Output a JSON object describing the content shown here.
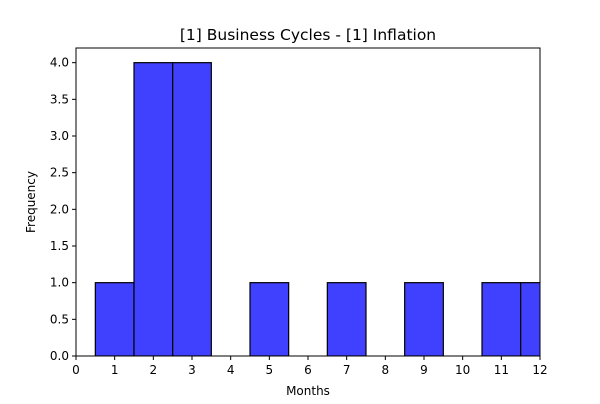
{
  "chart_data": {
    "type": "bar",
    "title": "[1] Business Cycles - [1] Inflation",
    "xlabel": "Months",
    "ylabel": "Frequency",
    "xlim": [
      0,
      12
    ],
    "ylim": [
      0,
      4.2
    ],
    "x_ticks": [
      "0",
      "1",
      "2",
      "3",
      "4",
      "5",
      "6",
      "7",
      "8",
      "9",
      "10",
      "11",
      "12"
    ],
    "y_ticks": [
      "0.0",
      "0.5",
      "1.0",
      "1.5",
      "2.0",
      "2.5",
      "3.0",
      "3.5",
      "4.0"
    ],
    "bin_width": 1,
    "bins": [
      {
        "x": 1,
        "count": 1
      },
      {
        "x": 2,
        "count": 4
      },
      {
        "x": 3,
        "count": 4
      },
      {
        "x": 5,
        "count": 1
      },
      {
        "x": 7,
        "count": 1
      },
      {
        "x": 9,
        "count": 1
      },
      {
        "x": 11,
        "count": 1
      },
      {
        "x": 12,
        "count": 1
      }
    ],
    "bar_color": "#4040ff",
    "edge_color": "#000000",
    "grid": false,
    "legend": "none"
  }
}
